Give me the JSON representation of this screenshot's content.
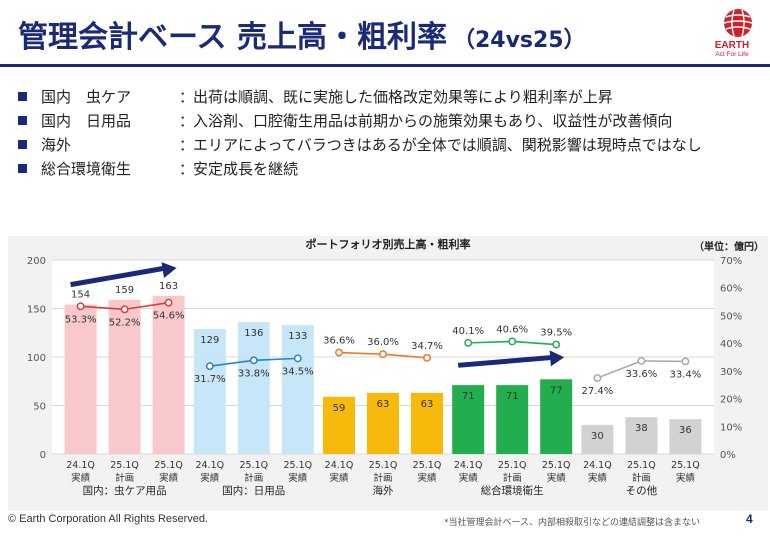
{
  "header": {
    "title": "管理会計ベース 売上高・粗利率",
    "subtitle": "（24vs25）",
    "logo_text": "EARTH",
    "logo_tagline": "Act For Life"
  },
  "bullets": [
    {
      "segment": "国内　虫ケア",
      "colon": "：",
      "text": "出荷は順調、既に実施した価格改定効果等により粗利率が上昇"
    },
    {
      "segment": "国内　日用品",
      "colon": "：",
      "text": "入浴剤、口腔衛生用品は前期からの施策効果もあり、収益性が改善傾向"
    },
    {
      "segment": "海外",
      "colon": "：",
      "text": "エリアによってバラつきはあるが全体では順調、関税影響は現時点ではなし"
    },
    {
      "segment": "総合環境衛生",
      "colon": "：",
      "text": "安定成長を継続"
    }
  ],
  "chart_data": {
    "type": "bar",
    "title": "ポートフォリオ別売上高・粗利率",
    "unit_label": "（単位：億円）",
    "y_left": {
      "min": 0,
      "max": 200,
      "ticks": [
        0,
        50,
        100,
        150,
        200
      ]
    },
    "y_right": {
      "min": 0,
      "max": 70,
      "ticks": [
        "0%",
        "10%",
        "20%",
        "30%",
        "40%",
        "50%",
        "60%",
        "70%"
      ]
    },
    "grid": true,
    "groups": [
      {
        "name": "国内：虫ケア用品",
        "bar_color": "#f9c8cc",
        "line_color": "#e03c3c",
        "value_labels_inside": false,
        "arrow": true,
        "bars": [
          {
            "period": "24.1Q",
            "kind": "実績",
            "sales": 154,
            "margin": 53.3,
            "margin_label": "53.3%"
          },
          {
            "period": "25.1Q",
            "kind": "計画",
            "sales": 159,
            "margin": 52.2,
            "margin_label": "52.2%"
          },
          {
            "period": "25.1Q",
            "kind": "実績",
            "sales": 163,
            "margin": 54.6,
            "margin_label": "54.6%"
          }
        ]
      },
      {
        "name": "国内：日用品",
        "bar_color": "#c7e6f8",
        "line_color": "#2d82c8",
        "value_labels_inside": true,
        "arrow": false,
        "bars": [
          {
            "period": "24.1Q",
            "kind": "実績",
            "sales": 129,
            "margin": 31.7,
            "margin_label": "31.7%"
          },
          {
            "period": "25.1Q",
            "kind": "計画",
            "sales": 136,
            "margin": 33.8,
            "margin_label": "33.8%"
          },
          {
            "period": "25.1Q",
            "kind": "実績",
            "sales": 133,
            "margin": 34.5,
            "margin_label": "34.5%"
          }
        ]
      },
      {
        "name": "海外",
        "bar_color": "#f7b90c",
        "line_color": "#ec7a2a",
        "value_labels_inside": true,
        "arrow": false,
        "bars": [
          {
            "period": "24.1Q",
            "kind": "実績",
            "sales": 59,
            "margin": 36.6,
            "margin_label": "36.6%"
          },
          {
            "period": "25.1Q",
            "kind": "計画",
            "sales": 63,
            "margin": 36.0,
            "margin_label": "36.0%"
          },
          {
            "period": "25.1Q",
            "kind": "実績",
            "sales": 63,
            "margin": 34.7,
            "margin_label": "34.7%"
          }
        ]
      },
      {
        "name": "総合環境衛生",
        "bar_color": "#22ad4f",
        "line_color": "#22ad4f",
        "value_labels_inside": true,
        "arrow": true,
        "bars": [
          {
            "period": "24.1Q",
            "kind": "実績",
            "sales": 71,
            "margin": 40.1,
            "margin_label": "40.1%"
          },
          {
            "period": "25.1Q",
            "kind": "計画",
            "sales": 71,
            "margin": 40.6,
            "margin_label": "40.6%"
          },
          {
            "period": "25.1Q",
            "kind": "実績",
            "sales": 77,
            "margin": 39.5,
            "margin_label": "39.5%"
          }
        ]
      },
      {
        "name": "その他",
        "bar_color": "#d2d2d2",
        "line_color": "#a8a8a8",
        "value_labels_inside": true,
        "arrow": false,
        "bars": [
          {
            "period": "24.1Q",
            "kind": "実績",
            "sales": 30,
            "margin": 27.4,
            "margin_label": "27.4%"
          },
          {
            "period": "25.1Q",
            "kind": "計画",
            "sales": 38,
            "margin": 33.6,
            "margin_label": "33.6%"
          },
          {
            "period": "25.1Q",
            "kind": "実績",
            "sales": 36,
            "margin": 33.4,
            "margin_label": "33.4%"
          }
        ]
      }
    ]
  },
  "footer": {
    "copyright": "© Earth Corporation  All Rights Reserved.",
    "note": "*当社管理会計ベース、内部相殺取引などの連結調整は含まない",
    "page": "4"
  }
}
